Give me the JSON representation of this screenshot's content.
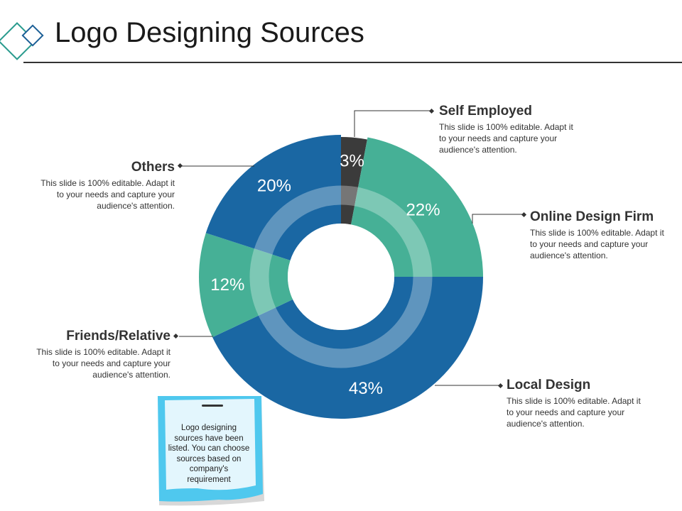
{
  "title": "Logo Designing Sources",
  "note": "Logo designing sources have been listed. You can choose sources based on company's requirement",
  "callouts": {
    "self_employed": {
      "heading": "Self Employed",
      "body": "This slide is 100% editable. Adapt it to your needs and capture your audience's attention."
    },
    "online_design_firm": {
      "heading": "Online Design Firm",
      "body": "This slide is 100% editable. Adapt it to your needs and capture your audience's attention."
    },
    "local_design": {
      "heading": "Local Design",
      "body": "This slide is 100% editable. Adapt it to your needs and capture your audience's attention."
    },
    "friends_relative": {
      "heading": "Friends/Relative",
      "body": "This slide is 100% editable. Adapt it to your needs and capture your audience's attention."
    },
    "others": {
      "heading": "Others",
      "body": "This slide is 100% editable. Adapt it to your needs and capture your audience's attention."
    }
  },
  "chart_data": {
    "type": "pie",
    "title": "",
    "slices": [
      {
        "label": "Self Employed",
        "value": 3,
        "display": "3%",
        "color": "#3b3b3b"
      },
      {
        "label": "Online Design Firm",
        "value": 22,
        "display": "22%",
        "color": "#46b096"
      },
      {
        "label": "Local Design",
        "value": 43,
        "display": "43%",
        "color": "#1a67a3"
      },
      {
        "label": "Friends/Relative",
        "value": 12,
        "display": "12%",
        "color": "#46b096"
      },
      {
        "label": "Others",
        "value": 20,
        "display": "20%",
        "color": "#1a67a3"
      }
    ]
  }
}
